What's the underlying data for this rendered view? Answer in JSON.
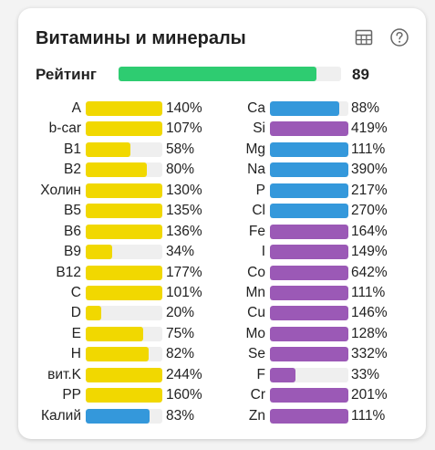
{
  "card": {
    "title": "Витамины и минералы",
    "icons": [
      "table-icon",
      "help-icon"
    ]
  },
  "rating": {
    "label": "Рейтинг",
    "value": "89",
    "fraction": 0.89,
    "color": "#2ecc71"
  },
  "colors": {
    "vitamin": "#f1d800",
    "blue": "#3498db",
    "purple": "#9b59b6",
    "track": "#efefef"
  },
  "vitamins": [
    {
      "label": "A",
      "pct": "140%",
      "fill": 1.0,
      "color": "#f1d800"
    },
    {
      "label": "b-car",
      "pct": "107%",
      "fill": 1.0,
      "color": "#f1d800"
    },
    {
      "label": "B1",
      "pct": "58%",
      "fill": 0.58,
      "color": "#f1d800"
    },
    {
      "label": "B2",
      "pct": "80%",
      "fill": 0.8,
      "color": "#f1d800"
    },
    {
      "label": "Холин",
      "pct": "130%",
      "fill": 1.0,
      "color": "#f1d800"
    },
    {
      "label": "B5",
      "pct": "135%",
      "fill": 1.0,
      "color": "#f1d800"
    },
    {
      "label": "B6",
      "pct": "136%",
      "fill": 1.0,
      "color": "#f1d800"
    },
    {
      "label": "B9",
      "pct": "34%",
      "fill": 0.34,
      "color": "#f1d800"
    },
    {
      "label": "B12",
      "pct": "177%",
      "fill": 1.0,
      "color": "#f1d800"
    },
    {
      "label": "C",
      "pct": "101%",
      "fill": 1.0,
      "color": "#f1d800"
    },
    {
      "label": "D",
      "pct": "20%",
      "fill": 0.2,
      "color": "#f1d800"
    },
    {
      "label": "E",
      "pct": "75%",
      "fill": 0.75,
      "color": "#f1d800"
    },
    {
      "label": "H",
      "pct": "82%",
      "fill": 0.82,
      "color": "#f1d800"
    },
    {
      "label": "вит.K",
      "pct": "244%",
      "fill": 1.0,
      "color": "#f1d800"
    },
    {
      "label": "PP",
      "pct": "160%",
      "fill": 1.0,
      "color": "#f1d800"
    },
    {
      "label": "Калий",
      "pct": "83%",
      "fill": 0.83,
      "color": "#3498db"
    }
  ],
  "minerals": [
    {
      "label": "Ca",
      "pct": "88%",
      "fill": 0.88,
      "color": "#3498db"
    },
    {
      "label": "Si",
      "pct": "419%",
      "fill": 1.0,
      "color": "#9b59b6"
    },
    {
      "label": "Mg",
      "pct": "111%",
      "fill": 1.0,
      "color": "#3498db"
    },
    {
      "label": "Na",
      "pct": "390%",
      "fill": 1.0,
      "color": "#3498db"
    },
    {
      "label": "P",
      "pct": "217%",
      "fill": 1.0,
      "color": "#3498db"
    },
    {
      "label": "Cl",
      "pct": "270%",
      "fill": 1.0,
      "color": "#3498db"
    },
    {
      "label": "Fe",
      "pct": "164%",
      "fill": 1.0,
      "color": "#9b59b6"
    },
    {
      "label": "I",
      "pct": "149%",
      "fill": 1.0,
      "color": "#9b59b6"
    },
    {
      "label": "Co",
      "pct": "642%",
      "fill": 1.0,
      "color": "#9b59b6"
    },
    {
      "label": "Mn",
      "pct": "111%",
      "fill": 1.0,
      "color": "#9b59b6"
    },
    {
      "label": "Cu",
      "pct": "146%",
      "fill": 1.0,
      "color": "#9b59b6"
    },
    {
      "label": "Mo",
      "pct": "128%",
      "fill": 1.0,
      "color": "#9b59b6"
    },
    {
      "label": "Se",
      "pct": "332%",
      "fill": 1.0,
      "color": "#9b59b6"
    },
    {
      "label": "F",
      "pct": "33%",
      "fill": 0.33,
      "color": "#9b59b6"
    },
    {
      "label": "Cr",
      "pct": "201%",
      "fill": 1.0,
      "color": "#9b59b6"
    },
    {
      "label": "Zn",
      "pct": "111%",
      "fill": 1.0,
      "color": "#9b59b6"
    }
  ]
}
